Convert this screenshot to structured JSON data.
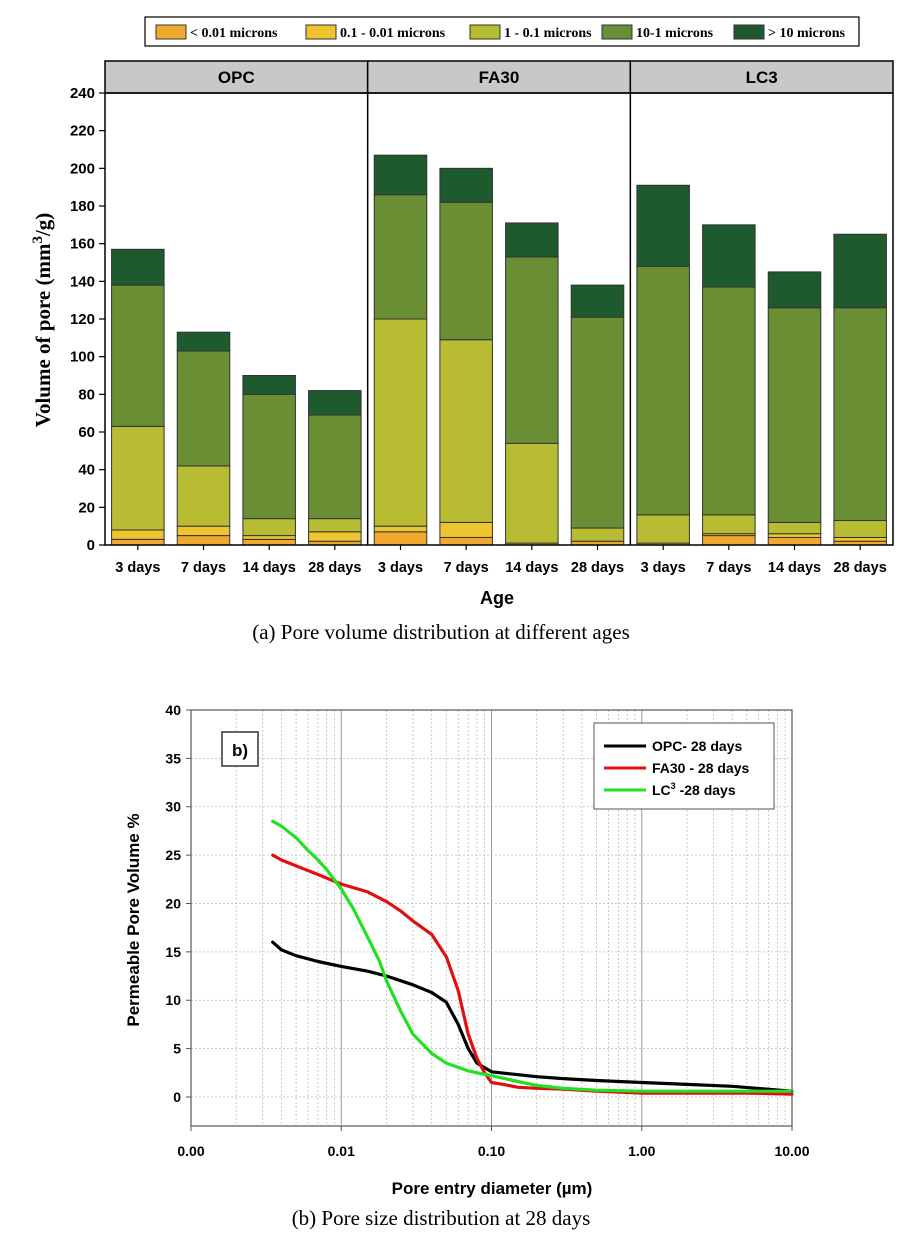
{
  "chart_data": [
    {
      "type": "stacked-bar",
      "xlabel": "Age",
      "ylabel": "Volume of pore (mm",
      "ylabel_sup": "3",
      "ylabel_tail": "/g)",
      "ylim": [
        0,
        240
      ],
      "yticks": [
        0,
        20,
        40,
        60,
        80,
        100,
        120,
        140,
        160,
        180,
        200,
        220,
        240
      ],
      "caption": "(a)  Pore volume distribution at different ages",
      "legend_position": "top",
      "legend": [
        {
          "name": "< 0.01 microns",
          "color": "#F0A830"
        },
        {
          "name": "0.1 - 0.01 microns",
          "color": "#EEC52E"
        },
        {
          "name": "1 - 0.1 microns",
          "color": "#B8BC32"
        },
        {
          "name": "10-1 microns",
          "color": "#6A8E34"
        },
        {
          "name": "> 10 microns",
          "color": "#1D5B2E"
        }
      ],
      "groups": [
        {
          "name": "OPC",
          "categories": [
            "3 days",
            "7 days",
            "14 days",
            "28 days"
          ],
          "stacks": [
            [
              3,
              5,
              55,
              75,
              19
            ],
            [
              5,
              5,
              32,
              61,
              10
            ],
            [
              3,
              2,
              9,
              66,
              10
            ],
            [
              2,
              5,
              7,
              55,
              13
            ]
          ]
        },
        {
          "name": "FA30",
          "categories": [
            "3 days",
            "7 days",
            "14 days",
            "28 days"
          ],
          "stacks": [
            [
              7,
              3,
              110,
              66,
              21
            ],
            [
              4,
              8,
              97,
              73,
              18
            ],
            [
              1,
              0,
              53,
              99,
              18
            ],
            [
              2,
              0,
              7,
              112,
              17
            ]
          ]
        },
        {
          "name": "LC3",
          "categories": [
            "3 days",
            "7 days",
            "14 days",
            "28 days"
          ],
          "stacks": [
            [
              1,
              0,
              15,
              132,
              43
            ],
            [
              5,
              1,
              10,
              121,
              33
            ],
            [
              4,
              2,
              6,
              114,
              19
            ],
            [
              2,
              2,
              9,
              113,
              39
            ]
          ]
        }
      ]
    },
    {
      "type": "line",
      "panel_label": "b)",
      "xlabel": "Pore entry diameter (µm)",
      "ylabel": "Permeable Pore Volume %",
      "xscale": "log",
      "xlim": [
        0.001,
        10
      ],
      "xtick_labels": [
        "0.00",
        "0.01",
        "0.10",
        "1.00",
        "10.00"
      ],
      "ylim": [
        -3,
        40
      ],
      "yticks": [
        0,
        5,
        10,
        15,
        20,
        25,
        30,
        35,
        40
      ],
      "grid": true,
      "caption": "(b) Pore size distribution at 28 days",
      "legend_position": "top-right",
      "series": [
        {
          "name": "OPC- 28 days",
          "color": "#000000",
          "x": [
            0.0035,
            0.004,
            0.005,
            0.007,
            0.01,
            0.015,
            0.02,
            0.03,
            0.04,
            0.05,
            0.06,
            0.07,
            0.08,
            0.1,
            0.15,
            0.2,
            0.3,
            0.5,
            1,
            2,
            4,
            10
          ],
          "y": [
            16,
            15.2,
            14.6,
            14.0,
            13.5,
            13.0,
            12.5,
            11.6,
            10.8,
            9.8,
            7.5,
            5.0,
            3.5,
            2.6,
            2.3,
            2.1,
            1.9,
            1.7,
            1.5,
            1.3,
            1.1,
            0.6
          ]
        },
        {
          "name": "FA30 - 28 days",
          "color": "#E01010",
          "x": [
            0.0035,
            0.004,
            0.005,
            0.007,
            0.01,
            0.015,
            0.02,
            0.025,
            0.03,
            0.04,
            0.05,
            0.06,
            0.07,
            0.08,
            0.09,
            0.1,
            0.12,
            0.15,
            0.2,
            0.3,
            0.5,
            1,
            2,
            5,
            10
          ],
          "y": [
            25,
            24.5,
            23.9,
            23.0,
            22.0,
            21.2,
            20.2,
            19.2,
            18.2,
            16.8,
            14.5,
            11.0,
            6.5,
            4.0,
            2.5,
            1.5,
            1.3,
            1.0,
            0.9,
            0.8,
            0.6,
            0.4,
            0.4,
            0.4,
            0.3
          ]
        },
        {
          "name": "LC",
          "name_sup": "3",
          "name_tail": " -28 days",
          "color": "#22E022",
          "x": [
            0.0035,
            0.004,
            0.005,
            0.006,
            0.007,
            0.008,
            0.01,
            0.012,
            0.015,
            0.018,
            0.02,
            0.025,
            0.03,
            0.04,
            0.05,
            0.07,
            0.1,
            0.15,
            0.2,
            0.3,
            0.5,
            1,
            2,
            5,
            10
          ],
          "y": [
            28.5,
            28.0,
            26.8,
            25.5,
            24.5,
            23.5,
            21.5,
            19.5,
            16.5,
            14.0,
            12.0,
            8.8,
            6.5,
            4.5,
            3.5,
            2.7,
            2.2,
            1.6,
            1.2,
            0.9,
            0.7,
            0.6,
            0.6,
            0.6,
            0.6
          ]
        }
      ]
    }
  ]
}
